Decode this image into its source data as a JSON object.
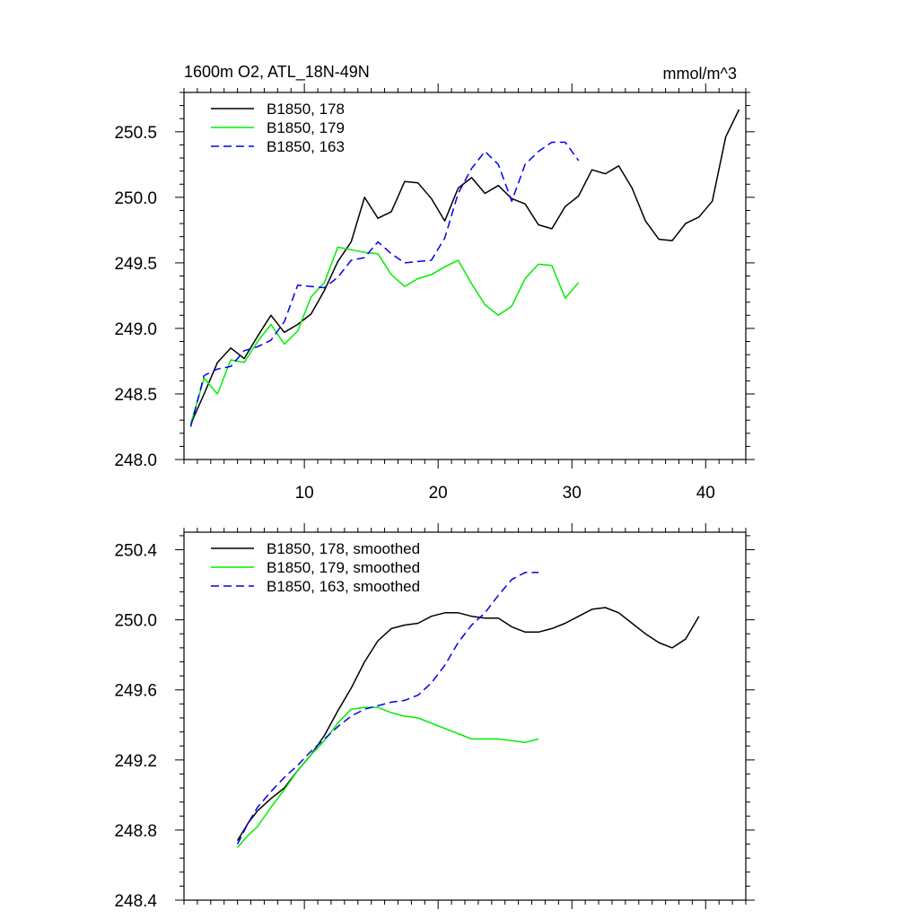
{
  "chart_data": [
    {
      "type": "line",
      "title": "1600m O2, ATL_18N-49N",
      "units": "mmol/m^3",
      "xlim": [
        1,
        43
      ],
      "ylim": [
        248.0,
        250.8
      ],
      "xticks": [
        10,
        20,
        30,
        40
      ],
      "xtick_labels": [
        "10",
        "20",
        "30",
        "40"
      ],
      "yticks": [
        248.0,
        248.5,
        249.0,
        249.5,
        250.0,
        250.5
      ],
      "ytick_labels": [
        "248.0",
        "248.5",
        "249.0",
        "249.5",
        "250.0",
        "250.5"
      ],
      "legend_position": "top-left",
      "series": [
        {
          "name": "B1850, 178",
          "color": "#000000",
          "dash": "solid",
          "x": [
            1.5,
            2.5,
            3.5,
            4.5,
            5.5,
            6.5,
            7.5,
            8.5,
            9.5,
            10.5,
            11.5,
            12.5,
            13.5,
            14.5,
            15.5,
            16.5,
            17.5,
            18.5,
            19.5,
            20.5,
            21.5,
            22.5,
            23.5,
            24.5,
            25.5,
            26.5,
            27.5,
            28.5,
            29.5,
            30.5,
            31.5,
            32.5,
            33.5,
            34.5,
            35.5,
            36.5,
            37.5,
            38.5,
            39.5,
            40.5,
            41.5,
            42.5
          ],
          "values": [
            248.27,
            248.5,
            248.74,
            248.85,
            248.77,
            248.94,
            249.1,
            248.97,
            249.03,
            249.11,
            249.29,
            249.51,
            249.66,
            250.0,
            249.84,
            249.89,
            250.12,
            250.11,
            249.99,
            249.82,
            250.07,
            250.15,
            250.03,
            250.09,
            249.99,
            249.95,
            249.79,
            249.76,
            249.93,
            250.01,
            250.21,
            250.18,
            250.24,
            250.07,
            249.82,
            249.68,
            249.67,
            249.8,
            249.85,
            249.97,
            250.46,
            250.67
          ]
        },
        {
          "name": "B1850, 179",
          "color": "#00ee00",
          "dash": "solid",
          "x": [
            1.5,
            2.5,
            3.5,
            4.5,
            5.5,
            6.5,
            7.5,
            8.5,
            9.5,
            10.5,
            11.5,
            12.5,
            13.5,
            14.5,
            15.5,
            16.5,
            17.5,
            18.5,
            19.5,
            20.5,
            21.5,
            22.5,
            23.5,
            24.5,
            25.5,
            26.5,
            27.5,
            28.5,
            29.5,
            30.5
          ],
          "values": [
            248.27,
            248.62,
            248.5,
            248.76,
            248.74,
            248.9,
            249.03,
            248.88,
            248.98,
            249.24,
            249.35,
            249.62,
            249.6,
            249.58,
            249.57,
            249.41,
            249.32,
            249.38,
            249.41,
            249.47,
            249.52,
            249.34,
            249.18,
            249.1,
            249.17,
            249.38,
            249.49,
            249.48,
            249.23,
            249.35
          ]
        },
        {
          "name": "B1850, 163",
          "color": "#0000ee",
          "dash": "dashed",
          "x": [
            1.5,
            2.5,
            3.5,
            4.5,
            5.5,
            6.5,
            7.5,
            8.5,
            9.5,
            10.5,
            11.5,
            12.5,
            13.5,
            14.5,
            15.5,
            16.5,
            17.5,
            18.5,
            19.5,
            20.5,
            21.5,
            22.5,
            23.5,
            24.5,
            25.5,
            26.5,
            27.5,
            28.5,
            29.5,
            30.5
          ],
          "values": [
            248.25,
            248.64,
            248.69,
            248.71,
            248.83,
            248.86,
            248.91,
            249.05,
            249.33,
            249.32,
            249.31,
            249.39,
            249.52,
            249.54,
            249.66,
            249.57,
            249.5,
            249.51,
            249.52,
            249.69,
            250.03,
            250.22,
            250.35,
            250.25,
            249.97,
            250.25,
            250.35,
            250.42,
            250.42,
            250.28
          ]
        }
      ]
    },
    {
      "type": "line",
      "xlim": [
        1,
        43
      ],
      "ylim": [
        248.4,
        250.5
      ],
      "xticks": [
        10,
        20,
        30,
        40
      ],
      "yticks": [
        248.4,
        248.8,
        249.2,
        249.6,
        250.0,
        250.4
      ],
      "ytick_labels": [
        "248.4",
        "248.8",
        "249.2",
        "249.6",
        "250.0",
        "250.4"
      ],
      "legend_position": "top-left",
      "series": [
        {
          "name": "B1850, 178, smoothed",
          "color": "#000000",
          "dash": "solid",
          "x": [
            5.0,
            5.8,
            6.5,
            7.5,
            8.5,
            9.5,
            10.5,
            11.5,
            12.5,
            13.5,
            14.5,
            15.5,
            16.5,
            17.5,
            18.5,
            19.5,
            20.5,
            21.5,
            22.5,
            23.5,
            24.5,
            25.5,
            26.5,
            27.5,
            28.5,
            29.5,
            30.5,
            31.5,
            32.5,
            33.5,
            34.5,
            35.5,
            36.5,
            37.5,
            38.5,
            39.5
          ],
          "values": [
            248.74,
            248.84,
            248.91,
            248.98,
            249.04,
            249.14,
            249.23,
            249.34,
            249.48,
            249.61,
            249.76,
            249.88,
            249.95,
            249.97,
            249.98,
            250.02,
            250.04,
            250.04,
            250.02,
            250.01,
            250.01,
            249.96,
            249.93,
            249.93,
            249.95,
            249.98,
            250.02,
            250.06,
            250.07,
            250.04,
            249.98,
            249.92,
            249.87,
            249.84,
            249.89,
            250.02
          ]
        },
        {
          "name": "B1850, 179, smoothed",
          "color": "#00ee00",
          "dash": "solid",
          "x": [
            5.0,
            5.8,
            6.5,
            7.5,
            8.5,
            9.5,
            10.5,
            11.5,
            12.5,
            13.5,
            14.5,
            15.5,
            16.5,
            17.5,
            18.5,
            19.5,
            20.5,
            21.5,
            22.5,
            23.5,
            24.5,
            25.5,
            26.5,
            27.5
          ],
          "values": [
            248.7,
            248.77,
            248.82,
            248.93,
            249.03,
            249.14,
            249.23,
            249.31,
            249.41,
            249.49,
            249.5,
            249.5,
            249.47,
            249.45,
            249.44,
            249.41,
            249.38,
            249.35,
            249.32,
            249.32,
            249.32,
            249.31,
            249.3,
            249.32
          ]
        },
        {
          "name": "B1850, 163, smoothed",
          "color": "#0000ee",
          "dash": "dashed",
          "x": [
            5.0,
            5.8,
            6.5,
            7.5,
            8.5,
            9.5,
            10.5,
            11.5,
            12.5,
            13.5,
            14.5,
            15.5,
            16.5,
            17.5,
            18.5,
            19.5,
            20.5,
            21.5,
            22.5,
            23.5,
            24.5,
            25.5,
            26.5,
            27.5
          ],
          "values": [
            248.72,
            248.84,
            248.93,
            249.02,
            249.1,
            249.17,
            249.25,
            249.32,
            249.39,
            249.45,
            249.49,
            249.51,
            249.53,
            249.54,
            249.57,
            249.64,
            249.74,
            249.87,
            249.97,
            250.04,
            250.14,
            250.23,
            250.27,
            250.27
          ]
        }
      ]
    }
  ]
}
